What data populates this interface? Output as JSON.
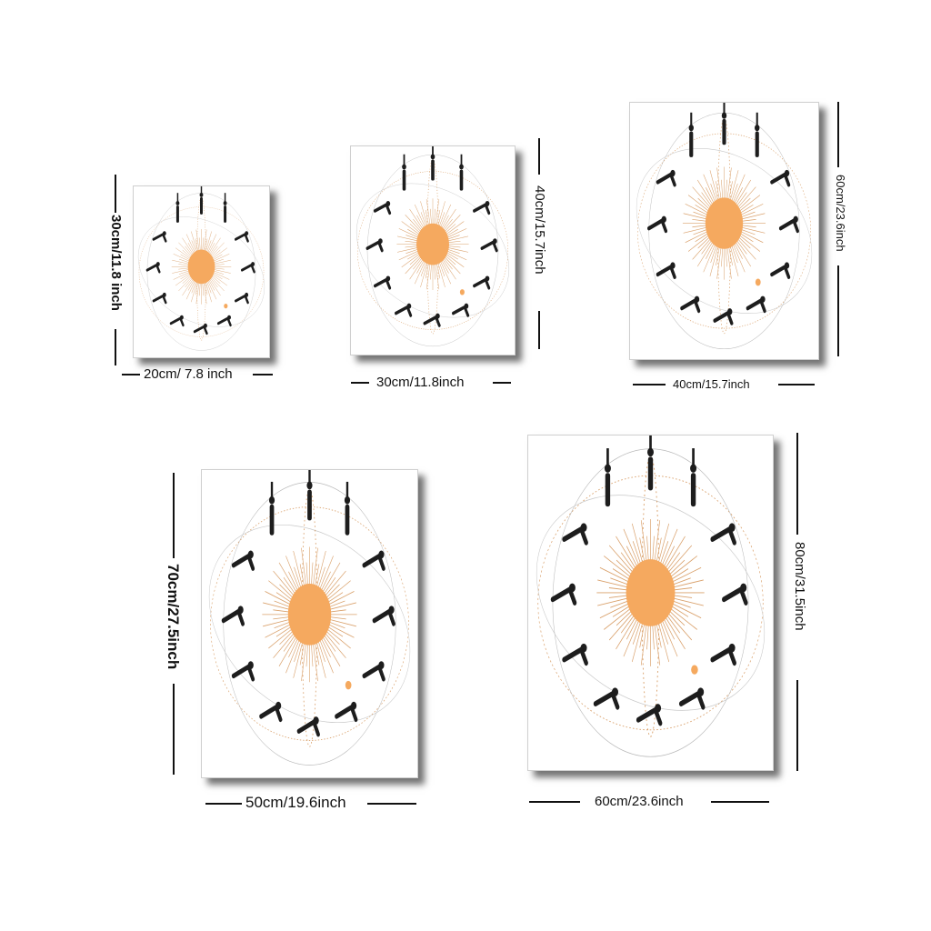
{
  "colors": {
    "sun": "#f5a95f",
    "figure": "#1d1d1d",
    "lines": "#d9a06a",
    "ink": "#111111"
  },
  "sizes": [
    {
      "id": "20x30",
      "width_label": "20cm/ 7.8 inch",
      "height_label": "30cm/11.8 inch"
    },
    {
      "id": "30x40",
      "width_label": "30cm/11.8inch",
      "height_label": "40cm/15.7inch"
    },
    {
      "id": "40x60",
      "width_label": "40cm/15.7inch",
      "height_label": "60cm/23.6inch"
    },
    {
      "id": "50x70",
      "width_label": "50cm/19.6inch",
      "height_label": "70cm/27.5inch"
    },
    {
      "id": "60x80",
      "width_label": "60cm/23.6inch",
      "height_label": "80cm/31.5inch"
    }
  ],
  "artwork": {
    "icon": "sun-salutation-yoga-sequence",
    "pose_count": 12
  }
}
